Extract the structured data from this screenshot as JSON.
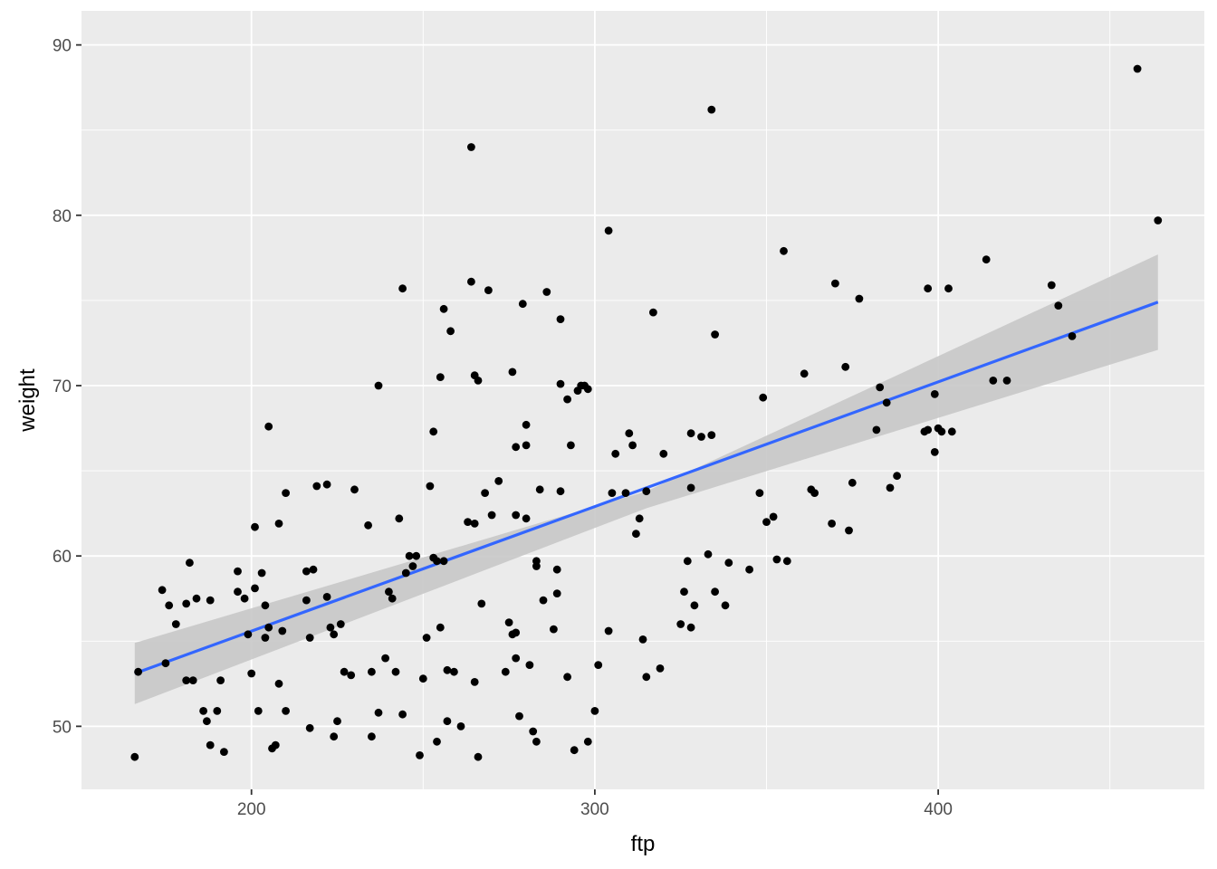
{
  "chart_data": {
    "type": "scatter",
    "title": "",
    "xlabel": "ftp",
    "ylabel": "weight",
    "xlim": [
      150.5,
      477.5
    ],
    "ylim": [
      46.3,
      92.0
    ],
    "x_ticks": [
      200,
      300,
      400
    ],
    "y_ticks": [
      50,
      60,
      70,
      80,
      90
    ],
    "x_tick_labels": [
      "200",
      "300",
      "400"
    ],
    "y_tick_labels": [
      "50",
      "60",
      "70",
      "80",
      "90"
    ],
    "grid": true,
    "legend": "none",
    "colors": {
      "panel": "#ebebeb",
      "grid": "#ffffff",
      "point": "#000000",
      "fit_line": "#3366ff",
      "ribbon": "#c8c8c8"
    },
    "points": [
      [
        166,
        48.2
      ],
      [
        167,
        53.2
      ],
      [
        174,
        58.0
      ],
      [
        175,
        53.7
      ],
      [
        176,
        57.1
      ],
      [
        178,
        56.0
      ],
      [
        181,
        52.7
      ],
      [
        181,
        57.2
      ],
      [
        182,
        59.6
      ],
      [
        183,
        52.7
      ],
      [
        184,
        57.5
      ],
      [
        186,
        50.9
      ],
      [
        187,
        50.3
      ],
      [
        188,
        57.4
      ],
      [
        188,
        48.9
      ],
      [
        190,
        50.9
      ],
      [
        191,
        52.7
      ],
      [
        192,
        48.5
      ],
      [
        196,
        59.1
      ],
      [
        196,
        57.9
      ],
      [
        198,
        57.5
      ],
      [
        199,
        55.4
      ],
      [
        200,
        53.1
      ],
      [
        201,
        58.1
      ],
      [
        201,
        61.7
      ],
      [
        202,
        50.9
      ],
      [
        203,
        59.0
      ],
      [
        204,
        55.2
      ],
      [
        204,
        57.1
      ],
      [
        205,
        55.8
      ],
      [
        205,
        67.6
      ],
      [
        206,
        48.7
      ],
      [
        207,
        48.9
      ],
      [
        208,
        61.9
      ],
      [
        208,
        52.5
      ],
      [
        209,
        55.6
      ],
      [
        210,
        50.9
      ],
      [
        210,
        63.7
      ],
      [
        216,
        59.1
      ],
      [
        216,
        57.4
      ],
      [
        217,
        49.9
      ],
      [
        217,
        55.2
      ],
      [
        218,
        59.2
      ],
      [
        219,
        64.1
      ],
      [
        222,
        64.2
      ],
      [
        222,
        57.6
      ],
      [
        223,
        55.8
      ],
      [
        224,
        49.4
      ],
      [
        224,
        55.4
      ],
      [
        225,
        50.3
      ],
      [
        226,
        56.0
      ],
      [
        227,
        53.2
      ],
      [
        229,
        53.0
      ],
      [
        230,
        63.9
      ],
      [
        234,
        61.8
      ],
      [
        235,
        53.2
      ],
      [
        235,
        49.4
      ],
      [
        237,
        70.0
      ],
      [
        237,
        50.8
      ],
      [
        239,
        54.0
      ],
      [
        240,
        57.9
      ],
      [
        241,
        57.5
      ],
      [
        242,
        53.2
      ],
      [
        243,
        62.2
      ],
      [
        244,
        75.7
      ],
      [
        244,
        50.7
      ],
      [
        245,
        59.0
      ],
      [
        246,
        60.0
      ],
      [
        247,
        59.4
      ],
      [
        248,
        60.0
      ],
      [
        249,
        48.3
      ],
      [
        250,
        52.8
      ],
      [
        251,
        55.2
      ],
      [
        252,
        64.1
      ],
      [
        253,
        59.9
      ],
      [
        253,
        67.3
      ],
      [
        254,
        59.7
      ],
      [
        254,
        49.1
      ],
      [
        255,
        70.5
      ],
      [
        255,
        55.8
      ],
      [
        256,
        59.7
      ],
      [
        256,
        74.5
      ],
      [
        257,
        53.3
      ],
      [
        257,
        50.3
      ],
      [
        258,
        73.2
      ],
      [
        259,
        53.2
      ],
      [
        261,
        50.0
      ],
      [
        263,
        62.0
      ],
      [
        264,
        84.0
      ],
      [
        264,
        76.1
      ],
      [
        265,
        70.6
      ],
      [
        265,
        61.9
      ],
      [
        265,
        52.6
      ],
      [
        266,
        70.3
      ],
      [
        266,
        48.2
      ],
      [
        267,
        57.2
      ],
      [
        268,
        63.7
      ],
      [
        269,
        75.6
      ],
      [
        270,
        62.4
      ],
      [
        272,
        64.4
      ],
      [
        274,
        53.2
      ],
      [
        275,
        56.1
      ],
      [
        276,
        55.4
      ],
      [
        276,
        70.8
      ],
      [
        277,
        55.5
      ],
      [
        277,
        66.4
      ],
      [
        277,
        62.4
      ],
      [
        277,
        54.0
      ],
      [
        278,
        50.6
      ],
      [
        279,
        74.8
      ],
      [
        280,
        66.5
      ],
      [
        280,
        67.7
      ],
      [
        280,
        62.2
      ],
      [
        281,
        53.6
      ],
      [
        282,
        49.7
      ],
      [
        283,
        49.1
      ],
      [
        283,
        59.7
      ],
      [
        283,
        59.4
      ],
      [
        284,
        63.9
      ],
      [
        285,
        57.4
      ],
      [
        286,
        75.5
      ],
      [
        288,
        55.7
      ],
      [
        289,
        59.2
      ],
      [
        289,
        57.8
      ],
      [
        290,
        63.8
      ],
      [
        290,
        70.1
      ],
      [
        290,
        73.9
      ],
      [
        292,
        69.2
      ],
      [
        292,
        52.9
      ],
      [
        293,
        66.5
      ],
      [
        294,
        48.6
      ],
      [
        295,
        69.7
      ],
      [
        296,
        70.0
      ],
      [
        297,
        70.0
      ],
      [
        298,
        69.8
      ],
      [
        298,
        49.1
      ],
      [
        300,
        50.9
      ],
      [
        301,
        53.6
      ],
      [
        304,
        79.1
      ],
      [
        304,
        55.6
      ],
      [
        305,
        63.7
      ],
      [
        306,
        66.0
      ],
      [
        309,
        63.7
      ],
      [
        310,
        67.2
      ],
      [
        311,
        66.5
      ],
      [
        312,
        61.3
      ],
      [
        313,
        62.2
      ],
      [
        314,
        55.1
      ],
      [
        315,
        63.8
      ],
      [
        315,
        52.9
      ],
      [
        317,
        74.3
      ],
      [
        319,
        53.4
      ],
      [
        320,
        66.0
      ],
      [
        325,
        56.0
      ],
      [
        326,
        57.9
      ],
      [
        327,
        59.7
      ],
      [
        328,
        64.0
      ],
      [
        328,
        67.2
      ],
      [
        328,
        55.8
      ],
      [
        329,
        57.1
      ],
      [
        331,
        67.0
      ],
      [
        333,
        60.1
      ],
      [
        334,
        67.1
      ],
      [
        334,
        86.2
      ],
      [
        335,
        57.9
      ],
      [
        335,
        73.0
      ],
      [
        338,
        57.1
      ],
      [
        339,
        59.6
      ],
      [
        345,
        59.2
      ],
      [
        348,
        63.7
      ],
      [
        349,
        69.3
      ],
      [
        350,
        62.0
      ],
      [
        352,
        62.3
      ],
      [
        353,
        59.8
      ],
      [
        355,
        77.9
      ],
      [
        356,
        59.7
      ],
      [
        361,
        70.7
      ],
      [
        363,
        63.9
      ],
      [
        364,
        63.7
      ],
      [
        369,
        61.9
      ],
      [
        370,
        76.0
      ],
      [
        373,
        71.1
      ],
      [
        374,
        61.5
      ],
      [
        375,
        64.3
      ],
      [
        377,
        75.1
      ],
      [
        382,
        67.4
      ],
      [
        383,
        69.9
      ],
      [
        385,
        69.0
      ],
      [
        386,
        64.0
      ],
      [
        388,
        64.7
      ],
      [
        396,
        67.3
      ],
      [
        397,
        67.4
      ],
      [
        397,
        75.7
      ],
      [
        399,
        66.1
      ],
      [
        399,
        69.5
      ],
      [
        400,
        67.5
      ],
      [
        401,
        67.3
      ],
      [
        403,
        75.7
      ],
      [
        404,
        67.3
      ],
      [
        414,
        77.4
      ],
      [
        416,
        70.3
      ],
      [
        420,
        70.3
      ],
      [
        433,
        75.9
      ],
      [
        435,
        74.7
      ],
      [
        439,
        72.9
      ],
      [
        458,
        88.6
      ],
      [
        464,
        79.7
      ]
    ],
    "fit": {
      "x": [
        166,
        464
      ],
      "y": [
        53.1,
        74.9
      ]
    },
    "ribbon": {
      "x": [
        166,
        315,
        464
      ],
      "upper": [
        54.9,
        63.8,
        77.7
      ],
      "lower": [
        51.3,
        62.8,
        72.1
      ]
    }
  }
}
